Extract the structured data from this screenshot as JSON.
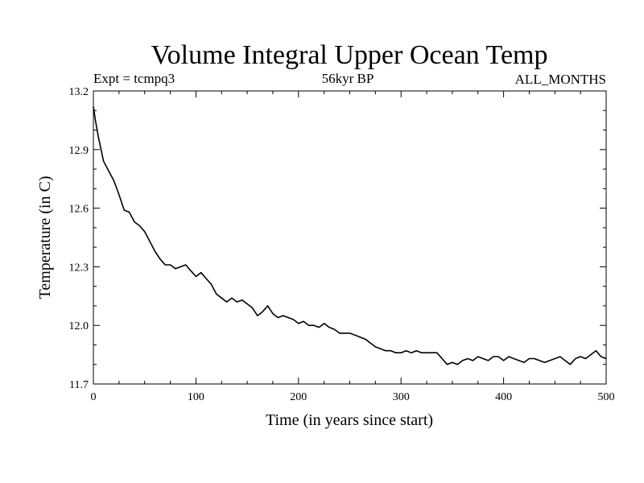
{
  "chart_data": {
    "type": "line",
    "title": "Volume Integral Upper Ocean Temp",
    "subtitle_left": "Expt = tcmpq3",
    "subtitle_center": "56kyr BP",
    "subtitle_right": "ALL_MONTHS",
    "xlabel": "Time (in years since start)",
    "ylabel": "Temperature (in C)",
    "xlim": [
      0,
      500
    ],
    "ylim": [
      11.7,
      13.2
    ],
    "x_ticks": [
      0,
      100,
      200,
      300,
      400,
      500
    ],
    "x_tick_labels": [
      "0",
      "100",
      "200",
      "300",
      "400",
      "500"
    ],
    "y_ticks": [
      11.7,
      12.0,
      12.3,
      12.6,
      12.9,
      13.2
    ],
    "y_tick_labels": [
      "11.7",
      "12.0",
      "12.3",
      "12.6",
      "12.9",
      "13.2"
    ],
    "grid": false,
    "series": [
      {
        "x": [
          0,
          2,
          5,
          10,
          15,
          20,
          25,
          30,
          35,
          40,
          45,
          50,
          55,
          60,
          65,
          70,
          75,
          80,
          85,
          90,
          95,
          100,
          105,
          110,
          115,
          120,
          125,
          130,
          135,
          140,
          145,
          150,
          155,
          160,
          165,
          170,
          175,
          180,
          185,
          190,
          195,
          200,
          205,
          210,
          215,
          220,
          225,
          230,
          235,
          240,
          245,
          250,
          255,
          260,
          265,
          270,
          275,
          280,
          285,
          290,
          295,
          300,
          305,
          310,
          315,
          320,
          325,
          330,
          335,
          340,
          345,
          350,
          355,
          360,
          365,
          370,
          375,
          380,
          385,
          390,
          395,
          400,
          405,
          410,
          415,
          420,
          425,
          430,
          435,
          440,
          445,
          450,
          455,
          460,
          465,
          470,
          475,
          480,
          485,
          490,
          495,
          500
        ],
        "y": [
          13.12,
          13.05,
          12.96,
          12.84,
          12.79,
          12.74,
          12.67,
          12.59,
          12.58,
          12.53,
          12.51,
          12.48,
          12.43,
          12.38,
          12.34,
          12.31,
          12.31,
          12.29,
          12.3,
          12.31,
          12.28,
          12.25,
          12.27,
          12.24,
          12.21,
          12.16,
          12.14,
          12.12,
          12.14,
          12.12,
          12.13,
          12.11,
          12.09,
          12.05,
          12.07,
          12.1,
          12.06,
          12.04,
          12.05,
          12.04,
          12.03,
          12.01,
          12.02,
          12.0,
          12.0,
          11.99,
          12.01,
          11.99,
          11.98,
          11.96,
          11.96,
          11.96,
          11.95,
          11.94,
          11.93,
          11.91,
          11.89,
          11.88,
          11.87,
          11.87,
          11.86,
          11.86,
          11.87,
          11.86,
          11.87,
          11.86,
          11.86,
          11.86,
          11.86,
          11.83,
          11.8,
          11.81,
          11.8,
          11.82,
          11.83,
          11.82,
          11.84,
          11.83,
          11.82,
          11.84,
          11.84,
          11.82,
          11.84,
          11.83,
          11.82,
          11.81,
          11.83,
          11.83,
          11.82,
          11.81,
          11.82,
          11.83,
          11.84,
          11.82,
          11.8,
          11.83,
          11.84,
          11.83,
          11.85,
          11.87,
          11.84,
          11.83
        ]
      }
    ]
  }
}
